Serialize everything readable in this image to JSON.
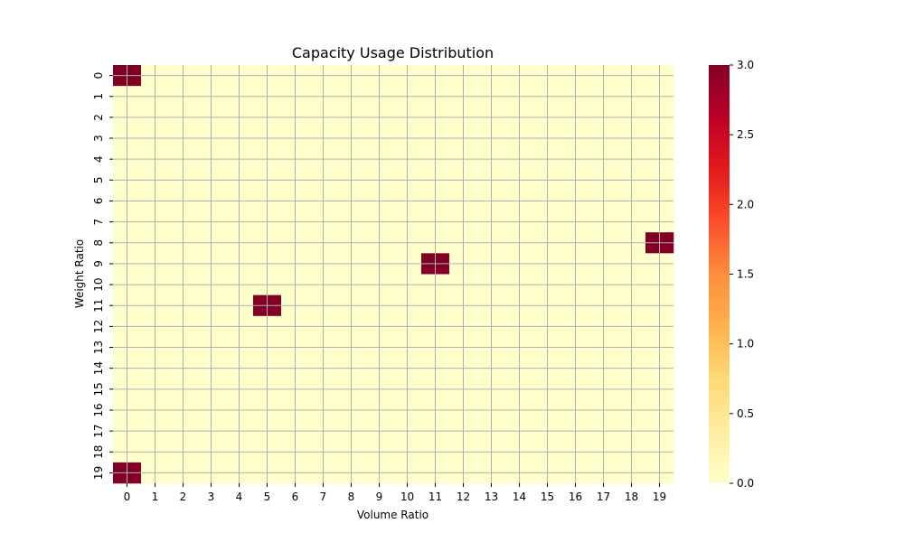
{
  "chart_data": {
    "type": "heatmap",
    "title": "Capacity Usage Distribution",
    "xlabel": "Volume Ratio",
    "ylabel": "Weight Ratio",
    "x_categories": [
      "0",
      "1",
      "2",
      "3",
      "4",
      "5",
      "6",
      "7",
      "8",
      "9",
      "10",
      "11",
      "12",
      "13",
      "14",
      "15",
      "16",
      "17",
      "18",
      "19"
    ],
    "y_categories": [
      "0",
      "1",
      "2",
      "3",
      "4",
      "5",
      "6",
      "7",
      "8",
      "9",
      "10",
      "11",
      "12",
      "13",
      "14",
      "15",
      "16",
      "17",
      "18",
      "19"
    ],
    "default_value": 0,
    "cells": [
      {
        "x": "0",
        "y": "0",
        "value": 3
      },
      {
        "x": "19",
        "y": "8",
        "value": 3
      },
      {
        "x": "11",
        "y": "9",
        "value": 3
      },
      {
        "x": "5",
        "y": "11",
        "value": 3
      },
      {
        "x": "0",
        "y": "19",
        "value": 3
      }
    ],
    "colorbar": {
      "colormap": "YlOrRd",
      "range": [
        0.0,
        3.0
      ],
      "ticks": [
        "0.0",
        "0.5",
        "1.0",
        "1.5",
        "2.0",
        "2.5",
        "3.0"
      ],
      "tick_values": [
        0,
        0.5,
        1.0,
        1.5,
        2.0,
        2.5,
        3.0
      ],
      "stops": [
        "#ffffcc",
        "#ffeda0",
        "#fed976",
        "#feb24c",
        "#fd8d3c",
        "#fc4e2a",
        "#e31a1c",
        "#bd0026",
        "#800026"
      ]
    },
    "grid": true,
    "grid_color": "#b0b0b0",
    "legend": "colorbar-right"
  }
}
